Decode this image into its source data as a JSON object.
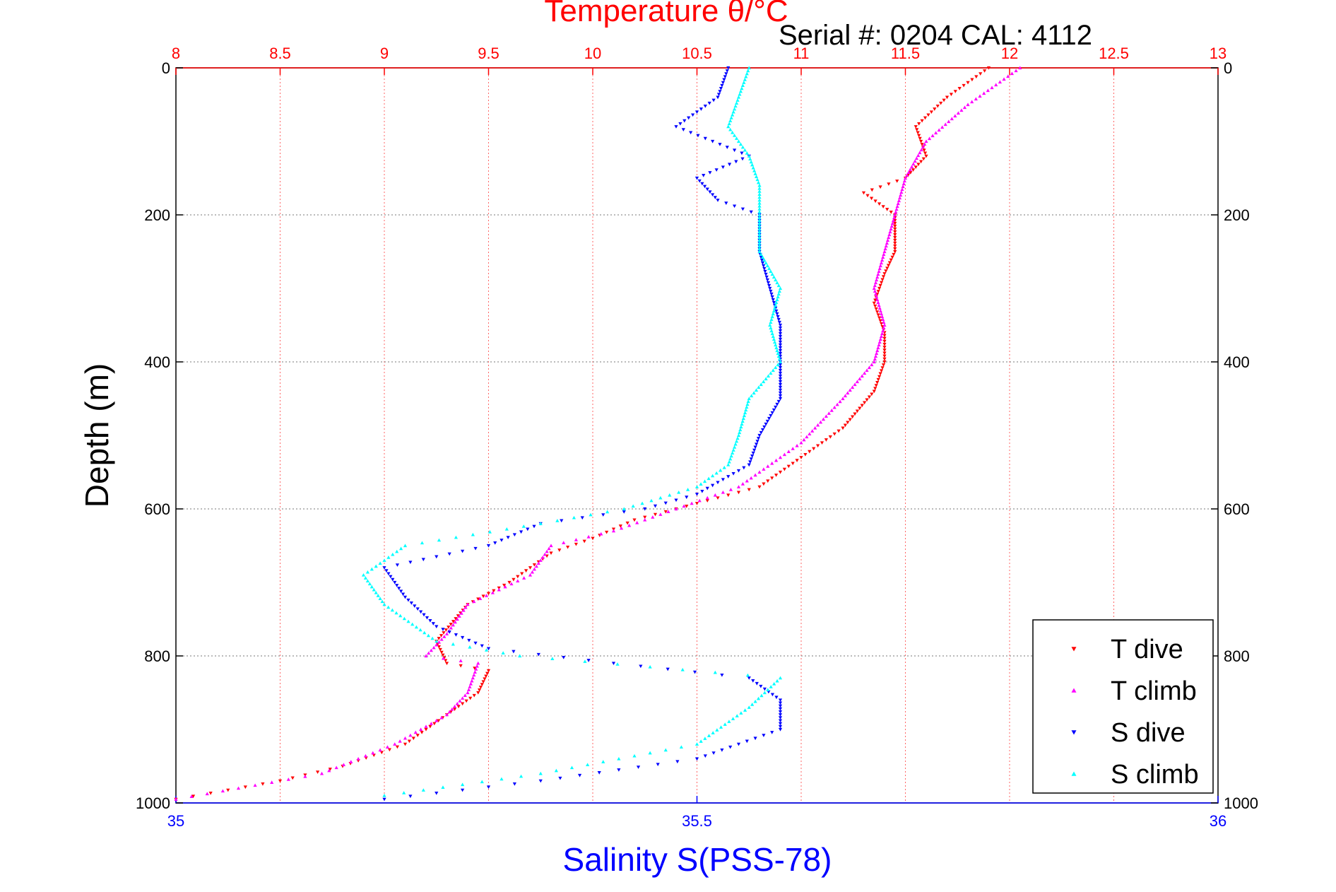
{
  "chart_data": {
    "type": "scatter",
    "title": "Temperature θ/°C",
    "subtitle": "Serial #: 0204  CAL: 4112",
    "ylabel": "Depth (m)",
    "xlabel": "Salinity S(PSS-78)",
    "temperature_axis": {
      "ticks": [
        "8",
        "8.5",
        "9",
        "9.5",
        "10",
        "10.5",
        "11",
        "11.5",
        "12",
        "12.5",
        "13"
      ],
      "range": [
        8,
        13
      ]
    },
    "salinity_axis": {
      "ticks": [
        "35",
        "35.5",
        "36"
      ],
      "range": [
        35,
        36
      ]
    },
    "depth_axis": {
      "ticks": [
        "0",
        "200",
        "400",
        "600",
        "800",
        "1000"
      ],
      "range": [
        0,
        1000
      ],
      "reversed": true
    },
    "grid": true,
    "legend_position": "bottom-right",
    "colors": {
      "T_dive": "#ff0000",
      "T_climb": "#ff00ff",
      "S_dive": "#0000ff",
      "S_climb": "#00ffff",
      "axis_top": "#ff0000",
      "axis_bottom": "#0000ff"
    },
    "series": [
      {
        "name": "T dive",
        "axis": "temperature",
        "marker": "triangle-down",
        "points": [
          [
            11.9,
            0
          ],
          [
            11.7,
            40
          ],
          [
            11.55,
            80
          ],
          [
            11.6,
            120
          ],
          [
            11.5,
            150
          ],
          [
            11.3,
            170
          ],
          [
            11.45,
            200
          ],
          [
            11.45,
            250
          ],
          [
            11.4,
            280
          ],
          [
            11.35,
            320
          ],
          [
            11.4,
            360
          ],
          [
            11.4,
            400
          ],
          [
            11.35,
            440
          ],
          [
            11.2,
            490
          ],
          [
            11,
            530
          ],
          [
            10.8,
            570
          ],
          [
            10.4,
            600
          ],
          [
            10.2,
            615
          ],
          [
            10,
            640
          ],
          [
            9.8,
            660
          ],
          [
            9.6,
            700
          ],
          [
            9.4,
            730
          ],
          [
            9.25,
            780
          ],
          [
            9.3,
            810
          ],
          [
            9.5,
            820
          ],
          [
            9.45,
            850
          ],
          [
            9.3,
            880
          ],
          [
            9.1,
            920
          ],
          [
            8.8,
            950
          ],
          [
            8.5,
            970
          ],
          [
            8,
            995
          ]
        ]
      },
      {
        "name": "T climb",
        "axis": "temperature",
        "marker": "triangle-up",
        "points": [
          [
            12.05,
            0
          ],
          [
            11.8,
            50
          ],
          [
            11.6,
            100
          ],
          [
            11.5,
            150
          ],
          [
            11.45,
            200
          ],
          [
            11.4,
            250
          ],
          [
            11.35,
            300
          ],
          [
            11.4,
            350
          ],
          [
            11.35,
            400
          ],
          [
            11.2,
            450
          ],
          [
            11.0,
            510
          ],
          [
            10.7,
            570
          ],
          [
            10.4,
            600
          ],
          [
            10.1,
            630
          ],
          [
            9.8,
            650
          ],
          [
            9.7,
            690
          ],
          [
            9.4,
            730
          ],
          [
            9.3,
            770
          ],
          [
            9.2,
            800
          ],
          [
            9.45,
            810
          ],
          [
            9.4,
            850
          ],
          [
            9.3,
            880
          ],
          [
            9.05,
            920
          ],
          [
            8.7,
            960
          ],
          [
            8.3,
            980
          ],
          [
            8,
            995
          ]
        ]
      },
      {
        "name": "S dive",
        "axis": "salinity",
        "marker": "triangle-down",
        "points": [
          [
            35.53,
            0
          ],
          [
            35.52,
            40
          ],
          [
            35.48,
            80
          ],
          [
            35.55,
            120
          ],
          [
            35.5,
            150
          ],
          [
            35.52,
            180
          ],
          [
            35.56,
            200
          ],
          [
            35.56,
            250
          ],
          [
            35.57,
            300
          ],
          [
            35.58,
            350
          ],
          [
            35.58,
            400
          ],
          [
            35.58,
            450
          ],
          [
            35.56,
            500
          ],
          [
            35.55,
            540
          ],
          [
            35.5,
            580
          ],
          [
            35.45,
            600
          ],
          [
            35.35,
            620
          ],
          [
            35.3,
            650
          ],
          [
            35.2,
            680
          ],
          [
            35.22,
            720
          ],
          [
            35.25,
            760
          ],
          [
            35.3,
            790
          ],
          [
            35.42,
            810
          ],
          [
            35.55,
            830
          ],
          [
            35.58,
            860
          ],
          [
            35.58,
            900
          ],
          [
            35.5,
            940
          ],
          [
            35.35,
            970
          ],
          [
            35.2,
            995
          ]
        ]
      },
      {
        "name": "S climb",
        "axis": "salinity",
        "marker": "triangle-up",
        "points": [
          [
            35.55,
            0
          ],
          [
            35.54,
            40
          ],
          [
            35.53,
            80
          ],
          [
            35.55,
            120
          ],
          [
            35.56,
            160
          ],
          [
            35.56,
            200
          ],
          [
            35.56,
            250
          ],
          [
            35.58,
            300
          ],
          [
            35.57,
            350
          ],
          [
            35.58,
            400
          ],
          [
            35.55,
            450
          ],
          [
            35.54,
            500
          ],
          [
            35.53,
            540
          ],
          [
            35.5,
            570
          ],
          [
            35.43,
            600
          ],
          [
            35.35,
            620
          ],
          [
            35.22,
            650
          ],
          [
            35.18,
            690
          ],
          [
            35.2,
            730
          ],
          [
            35.25,
            780
          ],
          [
            35.33,
            800
          ],
          [
            35.58,
            830
          ],
          [
            35.55,
            870
          ],
          [
            35.5,
            920
          ],
          [
            35.35,
            960
          ],
          [
            35.2,
            990
          ]
        ]
      }
    ]
  }
}
